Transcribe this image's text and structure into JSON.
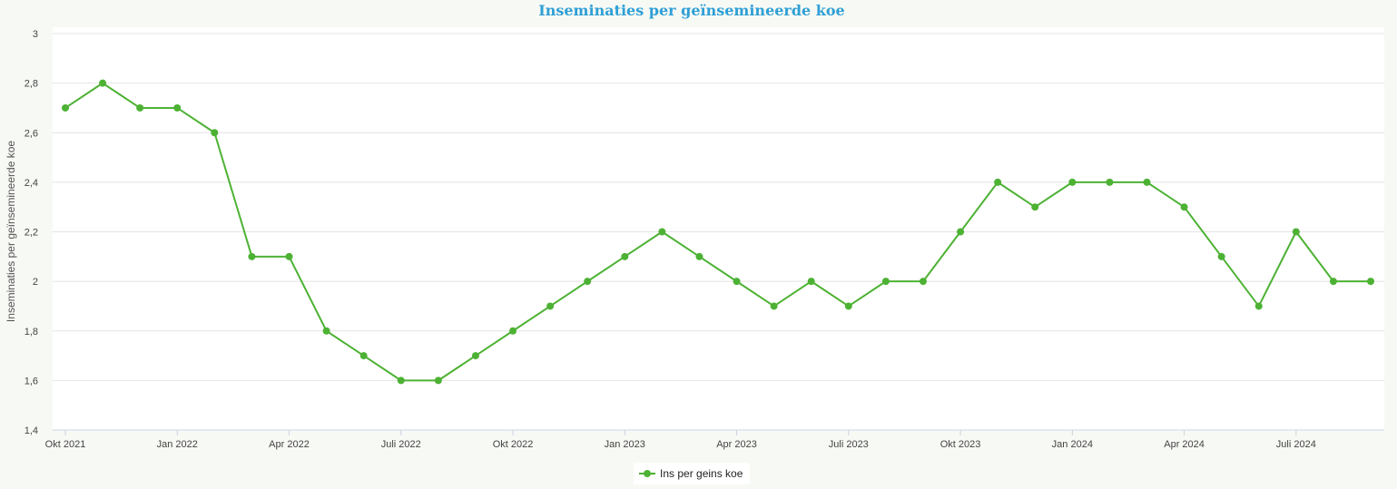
{
  "chart_data": {
    "type": "line",
    "title": "Inseminaties per geïnsemineerde koe",
    "ylabel": "Inseminaties per geïnsemineerde koe",
    "xlabel": "",
    "ylim": [
      1.4,
      3
    ],
    "yticks": [
      "1,4",
      "1,6",
      "1,8",
      "2",
      "2,2",
      "2,4",
      "2,6",
      "2,8",
      "3"
    ],
    "ytick_values": [
      1.4,
      1.6,
      1.8,
      2.0,
      2.2,
      2.4,
      2.6,
      2.8,
      3.0
    ],
    "x": [
      "2021-10",
      "2021-11",
      "2021-12",
      "2022-01",
      "2022-02",
      "2022-03",
      "2022-04",
      "2022-05",
      "2022-06",
      "2022-07",
      "2022-08",
      "2022-09",
      "2022-10",
      "2022-11",
      "2022-12",
      "2023-01",
      "2023-02",
      "2023-03",
      "2023-04",
      "2023-05",
      "2023-06",
      "2023-07",
      "2023-08",
      "2023-09",
      "2023-10",
      "2023-11",
      "2023-12",
      "2024-01",
      "2024-02",
      "2024-03",
      "2024-04",
      "2024-05",
      "2024-06",
      "2024-07",
      "2024-08",
      "2024-09"
    ],
    "xticks": [
      {
        "month": "2021-10",
        "label": "Okt 2021"
      },
      {
        "month": "2022-01",
        "label": "Jan 2022"
      },
      {
        "month": "2022-04",
        "label": "Apr 2022"
      },
      {
        "month": "2022-07",
        "label": "Juli 2022"
      },
      {
        "month": "2022-10",
        "label": "Okt 2022"
      },
      {
        "month": "2023-01",
        "label": "Jan 2023"
      },
      {
        "month": "2023-04",
        "label": "Apr 2023"
      },
      {
        "month": "2023-07",
        "label": "Juli 2023"
      },
      {
        "month": "2023-10",
        "label": "Okt 2023"
      },
      {
        "month": "2024-01",
        "label": "Jan 2024"
      },
      {
        "month": "2024-04",
        "label": "Apr 2024"
      },
      {
        "month": "2024-07",
        "label": "Juli 2024"
      }
    ],
    "series": [
      {
        "name": "Ins per geins koe",
        "color": "#4db234",
        "values": [
          2.7,
          2.8,
          2.7,
          2.7,
          2.6,
          2.1,
          2.1,
          1.8,
          1.7,
          1.6,
          1.6,
          1.7,
          1.8,
          1.9,
          2.0,
          2.1,
          2.2,
          2.1,
          2.0,
          1.9,
          2.0,
          1.9,
          2.0,
          2.0,
          2.2,
          2.4,
          2.3,
          2.4,
          2.4,
          2.4,
          2.3,
          2.1,
          1.9,
          2.2,
          2.0,
          2.0
        ]
      }
    ],
    "grid": true,
    "legend_position": "bottom-center"
  }
}
